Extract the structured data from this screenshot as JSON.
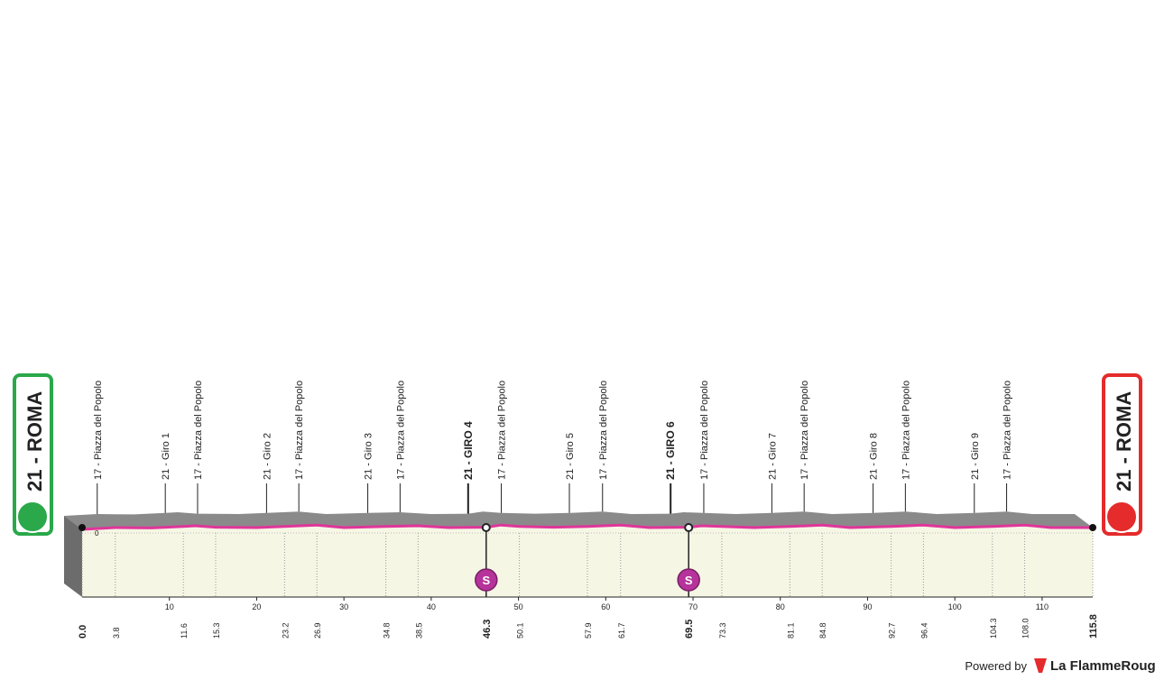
{
  "chart_data": {
    "type": "profile",
    "start_label": "21 - ROMA",
    "finish_label": "21 - ROMA",
    "xlim": [
      0,
      115.8
    ],
    "ylim": [
      0,
      100
    ],
    "yticks": [
      0
    ],
    "xticks": [
      10,
      20,
      30,
      40,
      50,
      60,
      70,
      80,
      90,
      100,
      110
    ],
    "distance_labels": [
      {
        "value": 0,
        "label": "0.0"
      },
      3.8,
      11.6,
      15.3,
      23.2,
      26.9,
      34.8,
      38.5,
      46.3,
      50.1,
      57.9,
      61.7,
      69.5,
      73.3,
      81.1,
      84.8,
      92.7,
      96.4,
      104.3,
      {
        "value": 108,
        "label": "108.0"
      },
      115.8
    ],
    "waypoints": [
      {
        "label": "17 - Piazza del Popolo",
        "km": 3.8
      },
      {
        "label": "21 - Giro 1",
        "km": 11.6
      },
      {
        "label": "17 - Piazza del Popolo",
        "km": 15.3
      },
      {
        "label": "21 - Giro 2",
        "km": 23.2
      },
      {
        "label": "17 - Piazza del Popolo",
        "km": 26.9
      },
      {
        "label": "21 - Giro 3",
        "km": 34.8
      },
      {
        "label": "17 - Piazza del Popolo",
        "km": 38.5
      },
      {
        "label": "21 - GIRO 4",
        "km": 46.3,
        "bold": true
      },
      {
        "label": "17 - Piazza del Popolo",
        "km": 50.1
      },
      {
        "label": "21 - Giro 5",
        "km": 57.9
      },
      {
        "label": "17 - Piazza del Popolo",
        "km": 61.7
      },
      {
        "label": "21 - GIRO 6",
        "km": 69.5,
        "bold": true
      },
      {
        "label": "17 - Piazza del Popolo",
        "km": 73.3
      },
      {
        "label": "21 - Giro 7",
        "km": 81.1
      },
      {
        "label": "17 - Piazza del Popolo",
        "km": 84.8
      },
      {
        "label": "21 - Giro 8",
        "km": 92.7
      },
      {
        "label": "17 - Piazza del Popolo",
        "km": 96.4
      },
      {
        "label": "21 - Giro 9",
        "km": 104.3
      },
      {
        "label": "17 - Piazza del Popolo",
        "km": 108.0
      }
    ],
    "sprints": [
      {
        "km": 46.3,
        "label": "S"
      },
      {
        "km": 69.5,
        "label": "S"
      }
    ],
    "elevation": {
      "color": "#e0359a",
      "x": [
        0,
        3.8,
        8,
        11.6,
        13,
        15.3,
        20,
        23.2,
        26.9,
        30,
        34.8,
        38.5,
        42,
        46.3,
        48,
        50.1,
        54,
        57.9,
        61.7,
        65,
        69.5,
        71,
        73.3,
        77,
        81.1,
        84.8,
        88,
        92.7,
        96.4,
        100,
        104.3,
        108,
        111,
        115.8
      ],
      "values": [
        10,
        15,
        14,
        18,
        20,
        16,
        15,
        18,
        22,
        15,
        18,
        20,
        15,
        16,
        22,
        18,
        16,
        18,
        22,
        15,
        16,
        20,
        18,
        15,
        18,
        22,
        15,
        18,
        22,
        15,
        18,
        22,
        15,
        15
      ]
    },
    "footer": {
      "powered": "Powered by",
      "brand": "La FlammeRouge"
    }
  }
}
